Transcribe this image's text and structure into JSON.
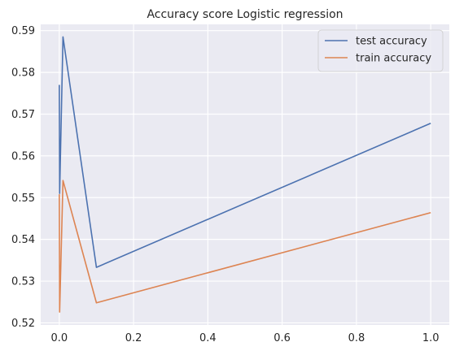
{
  "chart_data": {
    "type": "line",
    "title": "Accuracy score Logistic regression",
    "xlabel": "",
    "ylabel": "",
    "xlim": [
      -0.05,
      1.05
    ],
    "ylim": [
      0.5195,
      0.5915
    ],
    "x_ticks": [
      0.0,
      0.2,
      0.4,
      0.6,
      0.8,
      1.0
    ],
    "x_tick_labels": [
      "0.0",
      "0.2",
      "0.4",
      "0.6",
      "0.8",
      "1.0"
    ],
    "y_ticks": [
      0.52,
      0.53,
      0.54,
      0.55,
      0.56,
      0.57,
      0.58,
      0.59
    ],
    "y_tick_labels": [
      "0.52",
      "0.53",
      "0.54",
      "0.55",
      "0.56",
      "0.57",
      "0.58",
      "0.59"
    ],
    "grid": true,
    "legend_position": "top-right",
    "x": [
      0.0001,
      0.001,
      0.01,
      0.1,
      1.0
    ],
    "series": [
      {
        "name": "test accuracy",
        "color": "#4c72b0",
        "values": [
          0.577,
          0.551,
          0.5885,
          0.5333,
          0.5678
        ]
      },
      {
        "name": "train accuracy",
        "color": "#dd8452",
        "values": [
          0.5508,
          0.5226,
          0.5541,
          0.5248,
          0.5464
        ]
      }
    ],
    "background": "#eaeaf2",
    "grid_color": "#ffffff"
  }
}
